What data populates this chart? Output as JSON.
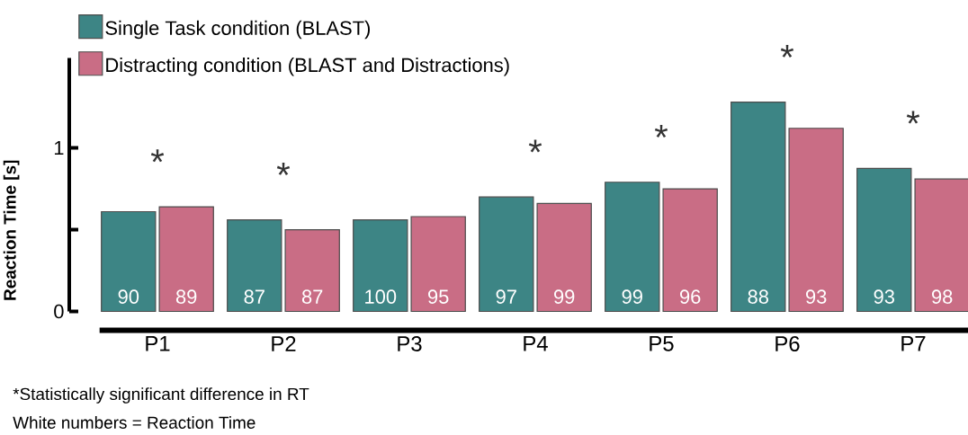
{
  "chart_data": {
    "type": "bar",
    "ylabel": "Reaction Time [s]",
    "categories": [
      "P1",
      "P2",
      "P3",
      "P4",
      "P5",
      "P6",
      "P7"
    ],
    "series": [
      {
        "name": "Single Task condition (BLAST)",
        "color": "#3d8585",
        "values": [
          0.61,
          0.56,
          0.56,
          0.7,
          0.79,
          1.28,
          0.875
        ]
      },
      {
        "name": "Distracting condition (BLAST and Distractions)",
        "color": "#c96d85",
        "values": [
          0.64,
          0.5,
          0.58,
          0.66,
          0.75,
          1.12,
          0.81
        ]
      }
    ],
    "ylim": [
      0,
      1.55
    ],
    "yticks": [
      0,
      1
    ],
    "legend": "top left",
    "annotations": [
      {
        "text": "*",
        "x": "P1",
        "y": 0.64
      },
      {
        "text": "*",
        "x": "P2",
        "y": 0.56
      },
      {
        "text": "*",
        "x": "P4",
        "y": 0.7
      },
      {
        "text": "*",
        "x": "P5",
        "y": 0.79
      },
      {
        "text": "*",
        "x": "P6",
        "y": 1.28
      },
      {
        "text": "*",
        "x": "P7",
        "y": 0.875
      },
      {
        "text": "90",
        "x": "P1",
        "y": 0.09
      },
      {
        "text": "89",
        "x": "P1",
        "y": 0.09
      },
      {
        "text": "87",
        "x": "P2",
        "y": 0.09
      },
      {
        "text": "87",
        "x": "P2",
        "y": 0.09
      },
      {
        "text": "100",
        "x": "P3",
        "y": 0.09
      },
      {
        "text": "95",
        "x": "P3",
        "y": 0.09
      },
      {
        "text": "97",
        "x": "P4",
        "y": 0.09
      },
      {
        "text": "99",
        "x": "P4",
        "y": 0.09
      },
      {
        "text": "99",
        "x": "P5",
        "y": 0.09
      },
      {
        "text": "96",
        "x": "P5",
        "y": 0.09
      },
      {
        "text": "88",
        "x": "P6",
        "y": 0.09
      },
      {
        "text": "93",
        "x": "P6",
        "y": 0.09
      },
      {
        "text": "93",
        "x": "P7",
        "y": 0.09
      },
      {
        "text": "98",
        "x": "P7",
        "y": 0.09
      },
      "*Statistically significant difference in RT",
      "White numbers = Reaction Time"
    ]
  }
}
